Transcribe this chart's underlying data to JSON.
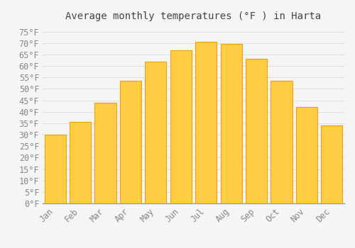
{
  "title": "Average monthly temperatures (°F ) in Harta",
  "months": [
    "Jan",
    "Feb",
    "Mar",
    "Apr",
    "May",
    "Jun",
    "Jul",
    "Aug",
    "Sep",
    "Oct",
    "Nov",
    "Dec"
  ],
  "values": [
    30,
    35.5,
    44,
    53.5,
    62,
    67,
    70.5,
    69.5,
    63,
    53.5,
    42,
    34
  ],
  "bar_color_light": "#FFCC44",
  "bar_color_dark": "#F0A010",
  "background_color": "#F5F5F5",
  "grid_color": "#DDDDDD",
  "ylim": [
    0,
    78
  ],
  "yticks": [
    0,
    5,
    10,
    15,
    20,
    25,
    30,
    35,
    40,
    45,
    50,
    55,
    60,
    65,
    70,
    75
  ],
  "title_fontsize": 10,
  "tick_fontsize": 8.5,
  "tick_color": "#888888",
  "title_color": "#444444",
  "font_family": "monospace",
  "bar_width": 0.85
}
